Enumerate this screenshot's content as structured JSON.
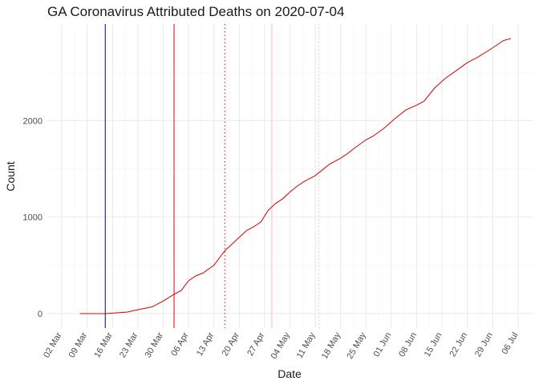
{
  "chart_data": {
    "type": "line",
    "title": "GA Coronavirus Attributed Deaths on 2020-07-04",
    "xlabel": "Date",
    "ylabel": "Count",
    "x_axis_type": "date",
    "xlim": [
      "2020-02-27",
      "2020-07-10"
    ],
    "ylim": [
      -150,
      3000
    ],
    "grid": true,
    "legend": "none",
    "x_tick_values": [
      "2020-03-02",
      "2020-03-09",
      "2020-03-16",
      "2020-03-23",
      "2020-03-30",
      "2020-04-06",
      "2020-04-13",
      "2020-04-20",
      "2020-04-27",
      "2020-05-04",
      "2020-05-11",
      "2020-05-18",
      "2020-05-25",
      "2020-06-01",
      "2020-06-08",
      "2020-06-15",
      "2020-06-22",
      "2020-06-29",
      "2020-07-06"
    ],
    "x_tick_labels": [
      "02 Mar",
      "09 Mar",
      "16 Mar",
      "23 Mar",
      "30 Mar",
      "06 Apr",
      "13 Apr",
      "20 Apr",
      "27 Apr",
      "04 May",
      "11 May",
      "18 May",
      "25 May",
      "01 Jun",
      "08 Jun",
      "15 Jun",
      "22 Jun",
      "29 Jun",
      "06 Jul"
    ],
    "y_tick_values": [
      0,
      1000,
      2000
    ],
    "y_tick_labels": [
      "0",
      "1000",
      "2000"
    ],
    "vertical_lines": [
      {
        "x": "2020-03-14",
        "color": "#000080",
        "style": "solid"
      },
      {
        "x": "2020-04-02",
        "color": "#e00000",
        "style": "solid"
      },
      {
        "x": "2020-04-16",
        "color": "#e00000",
        "style": "dotted"
      },
      {
        "x": "2020-04-29",
        "color": "#ffb6c1",
        "style": "solid"
      },
      {
        "x": "2020-05-12",
        "color": "#ffb6c1",
        "style": "dotted"
      }
    ],
    "series": [
      {
        "color": "#e00000",
        "x": [
          "2020-03-07",
          "2020-03-14",
          "2020-03-20",
          "2020-03-23",
          "2020-03-27",
          "2020-03-30",
          "2020-04-02",
          "2020-04-04",
          "2020-04-06",
          "2020-04-08",
          "2020-04-10",
          "2020-04-13",
          "2020-04-16",
          "2020-04-18",
          "2020-04-20",
          "2020-04-22",
          "2020-04-24",
          "2020-04-26",
          "2020-04-28",
          "2020-04-30",
          "2020-05-02",
          "2020-05-04",
          "2020-05-06",
          "2020-05-08",
          "2020-05-11",
          "2020-05-13",
          "2020-05-15",
          "2020-05-18",
          "2020-05-20",
          "2020-05-22",
          "2020-05-25",
          "2020-05-27",
          "2020-05-30",
          "2020-06-02",
          "2020-06-05",
          "2020-06-08",
          "2020-06-10",
          "2020-06-13",
          "2020-06-16",
          "2020-06-19",
          "2020-06-22",
          "2020-06-25",
          "2020-06-28",
          "2020-06-30",
          "2020-07-02",
          "2020-07-04"
        ],
        "y": [
          0,
          0,
          15,
          40,
          70,
          130,
          200,
          240,
          340,
          390,
          420,
          500,
          650,
          720,
          790,
          860,
          900,
          950,
          1070,
          1140,
          1190,
          1260,
          1320,
          1370,
          1430,
          1490,
          1550,
          1610,
          1660,
          1720,
          1800,
          1840,
          1920,
          2020,
          2110,
          2160,
          2200,
          2340,
          2440,
          2520,
          2600,
          2660,
          2730,
          2780,
          2830,
          2850
        ]
      }
    ]
  }
}
